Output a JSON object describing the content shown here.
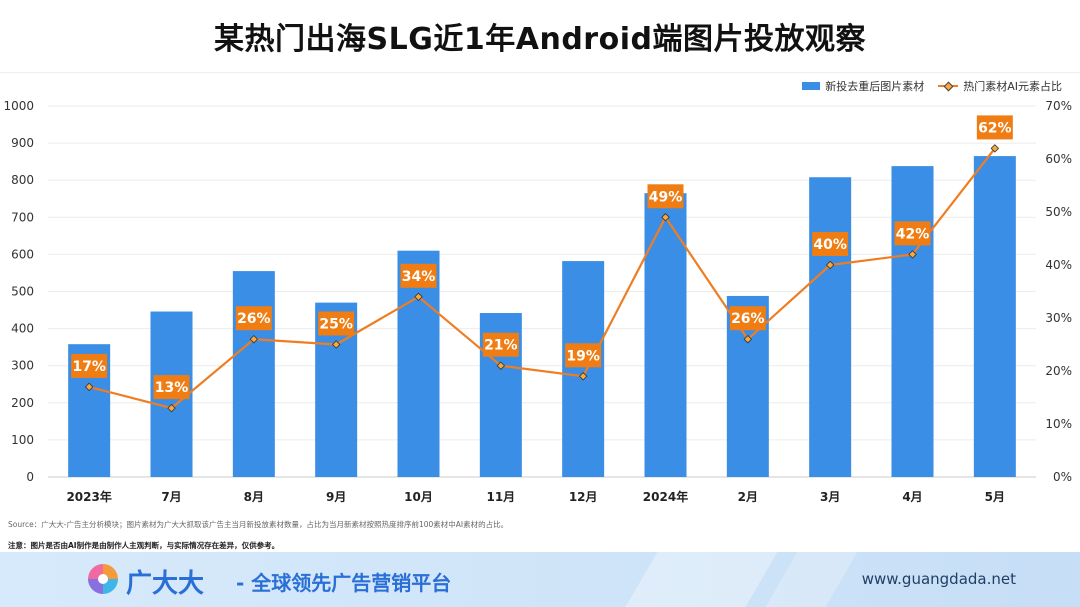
{
  "chart_data": {
    "type": "bar+line",
    "title": "某热门出海SLG近1年Android端图片投放观察",
    "categories": [
      "2023年",
      "7月",
      "8月",
      "9月",
      "10月",
      "11月",
      "12月",
      "2024年",
      "2月",
      "3月",
      "4月",
      "5月"
    ],
    "series": [
      {
        "name": "新投去重后图片素材",
        "type": "bar",
        "axis": "left",
        "values": [
          358,
          446,
          555,
          470,
          610,
          442,
          582,
          765,
          488,
          808,
          838,
          865
        ]
      },
      {
        "name": "热门素材AI元素占比",
        "type": "line",
        "axis": "right",
        "values": [
          17,
          13,
          26,
          25,
          34,
          21,
          19,
          49,
          26,
          40,
          42,
          62
        ],
        "labels": [
          "17%",
          "13%",
          "26%",
          "25%",
          "34%",
          "21%",
          "19%",
          "49%",
          "26%",
          "40%",
          "42%",
          "62%"
        ]
      }
    ],
    "left_axis": {
      "ylim": [
        0,
        1000
      ],
      "ticks": [
        "0",
        "100",
        "200",
        "300",
        "400",
        "500",
        "600",
        "700",
        "800",
        "900",
        "1000"
      ]
    },
    "right_axis": {
      "ylim": [
        0,
        70
      ],
      "ticks": [
        "0%",
        "10%",
        "20%",
        "30%",
        "40%",
        "50%",
        "60%",
        "70%"
      ]
    },
    "grid": true,
    "legend_position": "top-right"
  },
  "colors": {
    "bar": "#3a8ee6",
    "line": "#ef7d22",
    "label_bg": "#f07d14",
    "marker": "#f5a940"
  },
  "footnotes": {
    "source": "Source：广大大-广告主分析模块；图片素材为广大大抓取该广告主当月新投放素材数量，占比为当月新素材按照热度排序前100素材中AI素材的占比。",
    "note": "注意：图片是否由AI制作是由制作人主观判断，与实际情况存在差异，仅供参考。"
  },
  "footer": {
    "logo_icon": "guangdada-logo-icon",
    "brand": "广大大",
    "slogan": "- 全球领先广告营销平台",
    "site": "www.guangdada.net"
  }
}
